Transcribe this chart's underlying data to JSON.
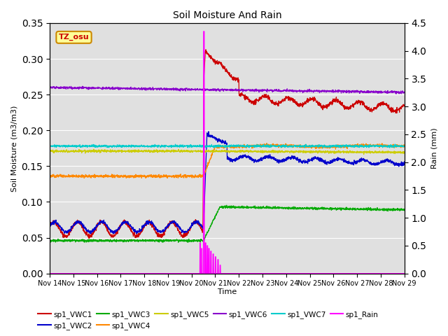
{
  "title": "Soil Moisture And Rain",
  "ylabel_left": "Soil Moisture (m3/m3)",
  "ylabel_right": "Rain (mm)",
  "xlabel": "Time",
  "ylim_left": [
    0.0,
    0.35
  ],
  "ylim_right": [
    0.0,
    4.5
  ],
  "background_color": "#e8e8e8",
  "plot_bg_color": "#e0e0e0",
  "annotation_text": "TZ_osu",
  "annotation_color": "#cc0000",
  "annotation_bg": "#ffff99",
  "annotation_border": "#cc8800",
  "series_colors": {
    "sp1_VWC1": "#cc0000",
    "sp1_VWC2": "#0000cc",
    "sp1_VWC3": "#00aa00",
    "sp1_VWC4": "#ff8800",
    "sp1_VWC5": "#cccc00",
    "sp1_VWC6": "#8800cc",
    "sp1_VWC7": "#00cccc",
    "sp1_Rain": "#ff00ff"
  },
  "x_tick_labels": [
    "Nov 14",
    "Nov 15",
    "Nov 16",
    "Nov 17",
    "Nov 18",
    "Nov 19",
    "Nov 20",
    "Nov 21",
    "Nov 22",
    "Nov 23",
    "Nov 24",
    "Nov 25",
    "Nov 26",
    "Nov 27",
    "Nov 28",
    "Nov 29"
  ],
  "legend_labels": [
    "sp1_VWC1",
    "sp1_VWC2",
    "sp1_VWC3",
    "sp1_VWC4",
    "sp1_VWC5",
    "sp1_VWC6",
    "sp1_VWC7",
    "sp1_Rain"
  ]
}
